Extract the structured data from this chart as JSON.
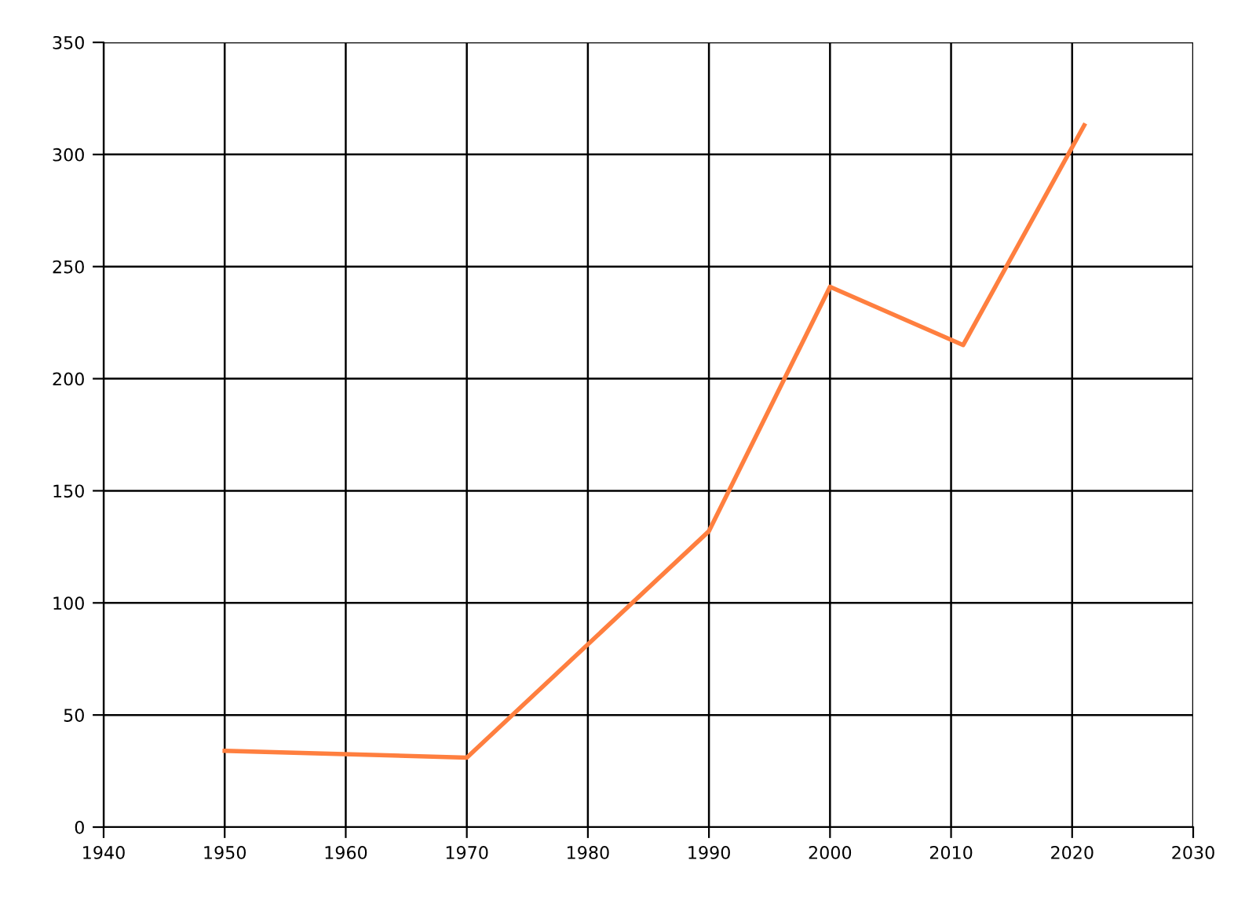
{
  "chart_data": {
    "type": "line",
    "series": [
      {
        "color": "#ff7f3f",
        "x": [
          1950,
          1970,
          1990,
          2000,
          2011,
          2021
        ],
        "values": [
          34,
          31,
          132,
          241,
          215,
          313
        ]
      }
    ],
    "xlim": [
      1940,
      2030
    ],
    "xticks": [
      1940,
      1950,
      1960,
      1970,
      1980,
      1990,
      2000,
      2010,
      2020,
      2030
    ],
    "ylim": [
      0,
      350
    ],
    "yticks": [
      0,
      50,
      100,
      150,
      200,
      250,
      300,
      350
    ],
    "grid": true
  }
}
